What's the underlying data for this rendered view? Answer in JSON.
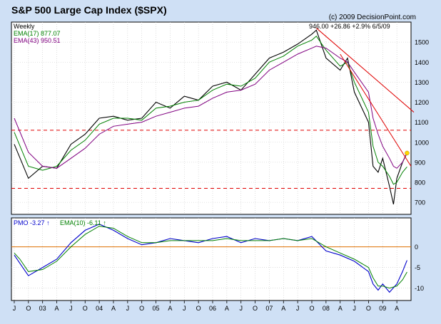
{
  "header": {
    "title": "S&P 500 Large Cap Index ($SPX)",
    "copyright": "(c) 2009 DecisionPoint.com",
    "period": "Weekly",
    "ema17_label": "EMA(17) 877.07",
    "ema43_label": "EMA(43) 950.51",
    "last_quote": "946.00  +26.86  +2.9%  6/5/09"
  },
  "colors": {
    "background": "#cfe0f5",
    "plot_bg": "#ffffff",
    "price": "#000000",
    "ema17": "#008000",
    "ema43": "#800080",
    "pmo": "#0000cc",
    "pmo_signal": "#008000",
    "trend": "#e00000",
    "zero_line": "#e07000",
    "current": "#ffd700"
  },
  "pmo_header": {
    "pmo_label": "PMO",
    "pmo_value": "-3.27",
    "ema_label": "EMA(10)",
    "ema_value": "-6.11",
    "up_arrow": "↑"
  },
  "chart_data": [
    {
      "type": "line",
      "title": "S&P 500 Large Cap Index ($SPX)",
      "subtitle": "Weekly",
      "ylim": [
        640,
        1600
      ],
      "y_ticks": [
        700,
        800,
        900,
        1000,
        1100,
        1200,
        1300,
        1400,
        1500
      ],
      "x": [
        2002.5,
        2002.75,
        2003.0,
        2003.25,
        2003.5,
        2003.75,
        2004.0,
        2004.25,
        2004.5,
        2004.75,
        2005.0,
        2005.25,
        2005.5,
        2005.75,
        2006.0,
        2006.25,
        2006.5,
        2006.75,
        2007.0,
        2007.25,
        2007.5,
        2007.75,
        2007.83,
        2008.0,
        2008.25,
        2008.38,
        2008.5,
        2008.75,
        2008.83,
        2008.92,
        2009.0,
        2009.12,
        2009.19,
        2009.25,
        2009.35,
        2009.43
      ],
      "series": [
        {
          "name": "$SPX",
          "values": [
            990,
            820,
            880,
            870,
            990,
            1040,
            1120,
            1130,
            1110,
            1120,
            1200,
            1170,
            1230,
            1210,
            1280,
            1300,
            1260,
            1340,
            1420,
            1450,
            1490,
            1540,
            1560,
            1420,
            1360,
            1420,
            1250,
            1100,
            880,
            850,
            920,
            780,
            690,
            820,
            900,
            946
          ]
        },
        {
          "name": "EMA(17)",
          "values": [
            1050,
            880,
            860,
            880,
            960,
            1010,
            1090,
            1120,
            1120,
            1110,
            1170,
            1180,
            1200,
            1210,
            1260,
            1290,
            1280,
            1320,
            1400,
            1430,
            1480,
            1510,
            1530,
            1460,
            1380,
            1400,
            1300,
            1150,
            980,
            900,
            880,
            830,
            790,
            800,
            850,
            877
          ]
        },
        {
          "name": "EMA(43)",
          "values": [
            1120,
            950,
            880,
            870,
            920,
            970,
            1040,
            1080,
            1090,
            1100,
            1130,
            1150,
            1170,
            1180,
            1220,
            1250,
            1260,
            1290,
            1360,
            1400,
            1440,
            1470,
            1480,
            1470,
            1420,
            1400,
            1350,
            1250,
            1120,
            1040,
            980,
            920,
            880,
            870,
            900,
            950
          ]
        }
      ],
      "reference_lines": [
        {
          "type": "horizontal",
          "value": 1060
        },
        {
          "type": "horizontal",
          "value": 770
        }
      ],
      "trend_lines": [
        {
          "from": [
            2007.83,
            1570
          ],
          "to": [
            2009.55,
            1150
          ]
        },
        {
          "from": [
            2008.25,
            1440
          ],
          "to": [
            2009.5,
            880
          ]
        }
      ]
    },
    {
      "type": "line",
      "title": "PMO",
      "ylim": [
        -13,
        7
      ],
      "y_ticks": [
        0,
        -5,
        -10
      ],
      "x": [
        2002.5,
        2002.6,
        2002.75,
        2003.0,
        2003.25,
        2003.5,
        2003.75,
        2004.0,
        2004.25,
        2004.5,
        2004.75,
        2005.0,
        2005.25,
        2005.5,
        2005.75,
        2006.0,
        2006.25,
        2006.5,
        2006.75,
        2007.0,
        2007.25,
        2007.5,
        2007.75,
        2008.0,
        2008.25,
        2008.5,
        2008.75,
        2008.83,
        2008.92,
        2009.0,
        2009.12,
        2009.25,
        2009.35,
        2009.43
      ],
      "series": [
        {
          "name": "PMO",
          "values": [
            -2.0,
            -4.0,
            -7.0,
            -5.0,
            -3.0,
            1.0,
            4.0,
            5.5,
            4.0,
            2.0,
            0.5,
            1.0,
            2.0,
            1.5,
            1.0,
            2.0,
            2.5,
            1.0,
            2.0,
            1.5,
            2.0,
            1.5,
            2.5,
            -1.0,
            -2.0,
            -3.5,
            -6.0,
            -9.0,
            -10.5,
            -9.0,
            -11.0,
            -9.0,
            -6.0,
            -3.27
          ]
        },
        {
          "name": "EMA(10)",
          "values": [
            -1.5,
            -3.0,
            -6.0,
            -5.5,
            -3.5,
            0.0,
            3.0,
            5.0,
            4.5,
            2.5,
            1.0,
            1.0,
            1.5,
            1.5,
            1.5,
            1.5,
            2.0,
            1.5,
            1.5,
            1.5,
            2.0,
            1.5,
            2.0,
            0.0,
            -1.5,
            -3.0,
            -5.0,
            -7.5,
            -9.5,
            -9.5,
            -10.0,
            -9.5,
            -8.0,
            -6.11
          ]
        }
      ],
      "reference_lines": [
        {
          "type": "horizontal",
          "value": 0
        }
      ]
    }
  ],
  "x_axis": {
    "labels": [
      {
        "t": 2002.5,
        "text": "J"
      },
      {
        "t": 2002.75,
        "text": "O"
      },
      {
        "t": 2003.0,
        "text": "03"
      },
      {
        "t": 2003.25,
        "text": "A"
      },
      {
        "t": 2003.5,
        "text": "J"
      },
      {
        "t": 2003.75,
        "text": "O"
      },
      {
        "t": 2004.0,
        "text": "04"
      },
      {
        "t": 2004.25,
        "text": "A"
      },
      {
        "t": 2004.5,
        "text": "J"
      },
      {
        "t": 2004.75,
        "text": "O"
      },
      {
        "t": 2005.0,
        "text": "05"
      },
      {
        "t": 2005.25,
        "text": "A"
      },
      {
        "t": 2005.5,
        "text": "J"
      },
      {
        "t": 2005.75,
        "text": "O"
      },
      {
        "t": 2006.0,
        "text": "06"
      },
      {
        "t": 2006.25,
        "text": "A"
      },
      {
        "t": 2006.5,
        "text": "J"
      },
      {
        "t": 2006.75,
        "text": "O"
      },
      {
        "t": 2007.0,
        "text": "07"
      },
      {
        "t": 2007.25,
        "text": "A"
      },
      {
        "t": 2007.5,
        "text": "J"
      },
      {
        "t": 2007.75,
        "text": "O"
      },
      {
        "t": 2008.0,
        "text": "08"
      },
      {
        "t": 2008.25,
        "text": "A"
      },
      {
        "t": 2008.5,
        "text": "J"
      },
      {
        "t": 2008.75,
        "text": "O"
      },
      {
        "t": 2009.0,
        "text": "09"
      },
      {
        "t": 2009.25,
        "text": "A"
      }
    ],
    "range": [
      2002.45,
      2009.5
    ]
  }
}
